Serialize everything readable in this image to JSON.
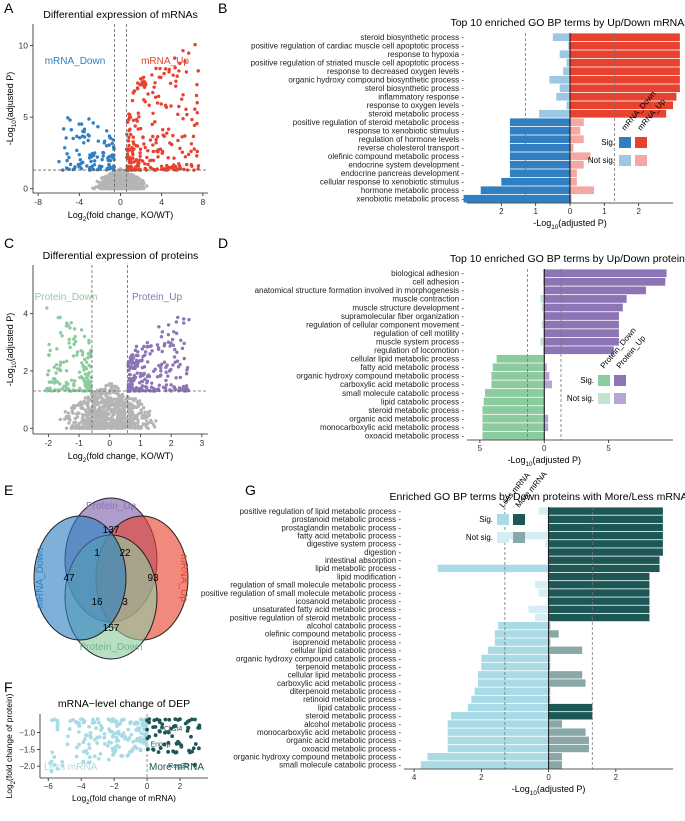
{
  "panel_labels": [
    "A",
    "B",
    "C",
    "D",
    "E",
    "F",
    "G"
  ],
  "colors": {
    "mrna_down": "#2f7fc1",
    "mrna_up": "#e8412d",
    "mrna_down_ns": "#9cc8e4",
    "mrna_up_ns": "#f3a8a2",
    "prot_down": "#8ccb9f",
    "prot_up": "#8c74b5",
    "prot_down_ns": "#c4e4cf",
    "prot_up_ns": "#b6a4d6",
    "less_mrna": "#a9dbe6",
    "more_mrna": "#1d5857",
    "less_mrna_ns": "#d4eef3",
    "more_mrna_ns": "#8aa8a8",
    "grey_pts": "#b5b5b5"
  },
  "chart_data": [
    {
      "id": "A",
      "type": "scatter",
      "title": "Differential expression of mRNAs",
      "xlabel_parts": [
        "Log",
        "2",
        "(fold change, KO/WT)"
      ],
      "ylabel_parts": [
        "-Log",
        "10",
        "(adjusted P)"
      ],
      "xlim": [
        -8.5,
        8.5
      ],
      "ylim": [
        -0.3,
        11.5
      ],
      "xticks": [
        -8,
        -4,
        0,
        4,
        8
      ],
      "yticks": [
        0,
        5,
        10
      ],
      "vlines": [
        -0.58,
        0.58
      ],
      "hline": 1.3,
      "labels": {
        "down": "mRNA_Down",
        "up": "mRNA_Up"
      },
      "series": [
        {
          "name": "mRNA_Down",
          "n": 110,
          "xrange": [
            -6.0,
            -0.6
          ],
          "yrange": [
            1.3,
            5.5
          ]
        },
        {
          "name": "mRNA_Up",
          "n": 260,
          "xrange": [
            0.6,
            7.6
          ],
          "yrange": [
            1.3,
            10.2
          ]
        },
        {
          "name": "ns",
          "n": 600,
          "xrange": [
            -3,
            3
          ],
          "yrange": [
            0,
            1.4
          ]
        }
      ]
    },
    {
      "id": "B",
      "type": "bar",
      "title": "Top 10 enriched GO BP terms by Up/Down mRNAs",
      "xlabel_parts": [
        "-Log",
        "10",
        "(adjusted P)"
      ],
      "xlim": [
        -3.0,
        3.0
      ],
      "xticks": [
        -2,
        -1,
        0,
        1,
        2
      ],
      "xtick_labels": [
        "2",
        "1",
        "0",
        "1",
        "2"
      ],
      "sig_line": 1.3,
      "legend": {
        "left_label": "mRNA_Down",
        "right_label": "mRNA_Up",
        "sig": "Sig.",
        "ns": "Not sig."
      },
      "categories": [
        "steroid biosynthetic process",
        "positive regulation of cardiac muscle cell apoptotic process",
        "response to hypoxia",
        "positive regulation of striated muscle cell apoptotic process",
        "response to decreased oxygen levels",
        "organic hydroxy compound biosynthetic process",
        "sterol biosynthetic process",
        "inflammatory response",
        "response to oxygen levels",
        "steroid metabolic process",
        "positive regulation of steroid metabolic process",
        "response to xenobiotic stimulus",
        "regulation of hormone levels",
        "reverse cholesterol transport",
        "olefinic compound metabolic process",
        "endocrine system development",
        "endocrine pancreas development",
        "cellular response to xenobiotic stimulus",
        "hormone metabolic process",
        "xenobiotic metabolic process"
      ],
      "series": [
        {
          "name": "Down",
          "values": [
            0.5,
            0.05,
            0.3,
            0.1,
            0.2,
            0.6,
            0.3,
            0.4,
            0.1,
            0.9,
            1.75,
            1.75,
            1.75,
            1.75,
            1.75,
            1.75,
            1.75,
            2.0,
            2.6,
            3.1
          ]
        },
        {
          "name": "Up",
          "values": [
            3.2,
            3.2,
            3.2,
            3.2,
            3.2,
            3.2,
            3.2,
            3.1,
            3.0,
            2.8,
            0.4,
            0.3,
            0.4,
            0.1,
            0.6,
            0.4,
            0.2,
            0.2,
            0.7,
            0.05
          ]
        }
      ]
    },
    {
      "id": "C",
      "type": "scatter",
      "title": "Differential expression of proteins",
      "xlabel_parts": [
        "Log",
        "2",
        "(fold change, KO/WT)"
      ],
      "ylabel_parts": [
        "-Log",
        "10",
        "(adjusted P)"
      ],
      "xlim": [
        -2.5,
        3.2
      ],
      "ylim": [
        -0.2,
        5.7
      ],
      "xticks": [
        -2,
        -1,
        0,
        1,
        2,
        3
      ],
      "yticks": [
        0,
        2,
        4
      ],
      "vlines": [
        -0.58,
        0.58
      ],
      "hline": 1.3,
      "labels": {
        "down": "Protein_Down",
        "up": "Protein_Up"
      },
      "series": [
        {
          "name": "Protein_Down",
          "n": 150,
          "xrange": [
            -2.1,
            -0.6
          ],
          "yrange": [
            1.3,
            4.4
          ]
        },
        {
          "name": "Protein_Up",
          "n": 230,
          "xrange": [
            0.6,
            2.6
          ],
          "yrange": [
            1.3,
            4.0
          ]
        },
        {
          "name": "ns",
          "n": 700,
          "xrange": [
            -1.6,
            1.9
          ],
          "yrange": [
            0,
            1.6
          ]
        }
      ]
    },
    {
      "id": "D",
      "type": "bar",
      "title": "Top 10 enriched GO BP terms by Up/Down proteins",
      "xlabel_parts": [
        "-Log",
        "10",
        "(adjusted P)"
      ],
      "xlim": [
        -6.0,
        10.0
      ],
      "xticks": [
        -5,
        0,
        5
      ],
      "xtick_labels": [
        "5",
        "0",
        "5"
      ],
      "sig_line": 1.3,
      "legend": {
        "left_label": "Protein_Down",
        "right_label": "Protein_Up",
        "sig": "Sig.",
        "ns": "Not sig."
      },
      "categories": [
        "biological adhesion",
        "cell adhesion",
        "anatomical structure formation involved in morphogenesis",
        "muscle contraction",
        "muscle structure development",
        "supramolecular fiber organization",
        "regulation of cellular component movement",
        "regulation of cell motility",
        "muscle system process",
        "regulation of locomotion",
        "cellular lipid metabolic process",
        "fatty acid metabolic process",
        "organic hydroxy compound metabolic process",
        "carboxylic acid metabolic process",
        "small molecule catabolic process",
        "lipid catabolic process",
        "steroid metabolic process",
        "organic acid metabolic process",
        "monocarboxylic acid metabolic process",
        "oxoacid metabolic process"
      ],
      "series": [
        {
          "name": "Down",
          "values": [
            0.1,
            0.1,
            0.05,
            0.3,
            0.2,
            0.1,
            0.2,
            0.05,
            0.3,
            0.1,
            3.7,
            4.0,
            4.1,
            4.1,
            4.6,
            4.7,
            4.8,
            4.8,
            4.8,
            4.8
          ]
        },
        {
          "name": "Up",
          "values": [
            9.5,
            9.4,
            7.9,
            6.4,
            6.1,
            5.8,
            5.8,
            5.8,
            5.8,
            5.4,
            0.05,
            0.2,
            0.4,
            0.6,
            0.05,
            0.05,
            0.05,
            0.3,
            0.3,
            0.05
          ]
        }
      ]
    },
    {
      "id": "E",
      "type": "venn",
      "sets": [
        "Protein_Up",
        "mRNA_Up",
        "Protein_Down",
        "mRNA_Down"
      ],
      "counts": {
        "pu_only": "137",
        "pu_md": "1",
        "pu_mu": "22",
        "mu_only": "93",
        "md_only": "47",
        "pd_md": "16",
        "pd_mu": "3",
        "pd_only": "157"
      }
    },
    {
      "id": "F",
      "type": "scatter",
      "title": "mRNA−level change of DEP",
      "xlabel_parts": [
        "Log",
        "2",
        "(fold change of mRNA)"
      ],
      "ylabel_parts": [
        "Log",
        "2",
        "(fold change of protein)"
      ],
      "xlim": [
        -6.5,
        3.7
      ],
      "ylim": [
        -2.35,
        -0.45
      ],
      "xticks": [
        -6,
        -4,
        -2,
        0,
        2
      ],
      "yticks": [
        -1.0,
        -1.5,
        -2.0
      ],
      "ytick_labels": [
        "−1.0",
        "−1.5",
        "−2.0"
      ],
      "xtick_labels": [
        "−6",
        "−4",
        "−2",
        "0",
        "2"
      ],
      "vline": 0,
      "labels": {
        "less": "Less mRNA",
        "more": "More mRNA"
      },
      "gene_labels": [
        {
          "text": "Chst4",
          "x": 2.5,
          "y": -0.86
        },
        {
          "text": "Enpep",
          "x": 1.8,
          "y": -1.33
        },
        {
          "text": "Reg3b",
          "x": 2.9,
          "y": -1.96
        }
      ],
      "series": [
        {
          "name": "Less mRNA",
          "n": 180,
          "xrange": [
            -6.0,
            0.0
          ],
          "yrange": [
            -2.2,
            -0.6
          ]
        },
        {
          "name": "More mRNA",
          "n": 60,
          "xrange": [
            0.0,
            3.3
          ],
          "yrange": [
            -1.6,
            -0.6
          ]
        }
      ]
    },
    {
      "id": "G",
      "type": "bar",
      "title": "Enriched GO BP terms by Down proteins with More/Less mRNA",
      "xlabel_parts": [
        "-Log",
        "10",
        "(adjusted P)"
      ],
      "xlim": [
        -4.3,
        3.7
      ],
      "xticks": [
        -4,
        -2,
        0,
        2
      ],
      "xtick_labels": [
        "4",
        "2",
        "0",
        "2"
      ],
      "sig_line": 1.3,
      "legend": {
        "left_label": "Less mRNA",
        "right_label": "More mRNA",
        "sig": "Sig.",
        "ns": "Not sig."
      },
      "categories": [
        "positive regulation of lipid metabolic process",
        "prostanoid metabolic process",
        "prostaglandin metabolic process",
        "fatty acid metabolic process",
        "digestive system process",
        "digestion",
        "intestinal absorption",
        "lipid metabolic process",
        "lipid modification",
        "regulation of small molecule metabolic process",
        "positive regulation of small molecule metabolic process",
        "icosanoid metabolic process",
        "unsaturated fatty acid metabolic process",
        "positive regulation of steroid metabolic process",
        "alcohol catabolic process",
        "olefinic compound metabolic process",
        "isoprenoid metabolic process",
        "cellular lipid catabolic process",
        "organic hydroxy compound catabolic process",
        "terpenoid metabolic process",
        "cellular lipid metabolic process",
        "carboxylic acid metabolic process",
        "diterpenoid metabolic process",
        "retinoid metabolic process",
        "lipid catabolic process",
        "steroid metabolic process",
        "alcohol metabolic process",
        "monocarboxylic acid metabolic process",
        "organic acid metabolic process",
        "oxoacid metabolic process",
        "organic hydroxy compound metabolic process",
        "small molecule catabolic process"
      ],
      "series": [
        {
          "name": "Less",
          "values": [
            0.3,
            0.05,
            0.05,
            1.2,
            0.1,
            0.05,
            0.05,
            3.3,
            0.05,
            0.4,
            0.3,
            0.05,
            0.6,
            0.4,
            1.5,
            1.6,
            1.6,
            1.8,
            2.0,
            2.0,
            2.1,
            2.1,
            2.2,
            2.3,
            2.4,
            2.9,
            3.0,
            3.0,
            3.0,
            3.0,
            3.6,
            3.8
          ]
        },
        {
          "name": "More",
          "values": [
            3.4,
            3.4,
            3.4,
            3.4,
            3.4,
            3.4,
            3.3,
            3.3,
            3.0,
            3.0,
            3.0,
            3.0,
            3.0,
            3.0,
            0.05,
            0.3,
            0.05,
            1.0,
            0.05,
            0.05,
            1.0,
            1.1,
            0.05,
            0.05,
            1.3,
            1.3,
            0.4,
            1.1,
            1.2,
            1.2,
            0.4,
            0.4
          ]
        }
      ]
    }
  ]
}
